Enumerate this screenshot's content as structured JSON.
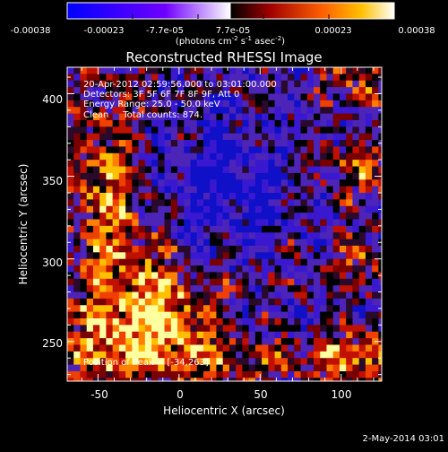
{
  "colorbar": {
    "tick_labels": [
      "-0.00038",
      "-0.00023",
      "-7.7e-05",
      "7.7e-05",
      "0.00023",
      "0.00038"
    ],
    "range": [
      -0.00038,
      0.00038
    ],
    "unit_label_main": "(photons cm",
    "unit_sup1": "-2",
    "unit_mid": " s",
    "unit_sup2": "-1",
    "unit_mid2": " asec",
    "unit_sup3": "-2",
    "unit_end": ")",
    "colors": [
      "#0000ff",
      "#7000ff",
      "#ffffff",
      "#ff0000",
      "#ffa000",
      "#ffffff"
    ]
  },
  "footer": {
    "date": "2-May-2014 03:01"
  },
  "chart_data": {
    "type": "heatmap",
    "title": "Reconstructed RHESSI Image",
    "xlabel": "Heliocentric X (arcsec)",
    "ylabel": "Heliocentric Y (arcsec)",
    "xlim": [
      -69,
      125
    ],
    "ylim": [
      226,
      416
    ],
    "x_ticks": [
      -50,
      0,
      50,
      100
    ],
    "y_ticks": [
      250,
      300,
      350,
      400
    ],
    "x_tick_labels": [
      "-50",
      "0",
      "50",
      "100"
    ],
    "y_tick_labels": [
      "250",
      "300",
      "350",
      "400"
    ],
    "colorscale": "rhessi",
    "annotations": [
      "20-Apr-2012 02:59:56.000 to 03:01:00.000",
      "Detectors: 3F 5F 6F 7F 8F 9F, Att 0",
      "Energy Range: 25.0 - 50.0 keV",
      "Clean     Total counts: 874.",
      "Position of Peak = [-34,263]"
    ],
    "peak": [
      -34,
      263
    ]
  }
}
